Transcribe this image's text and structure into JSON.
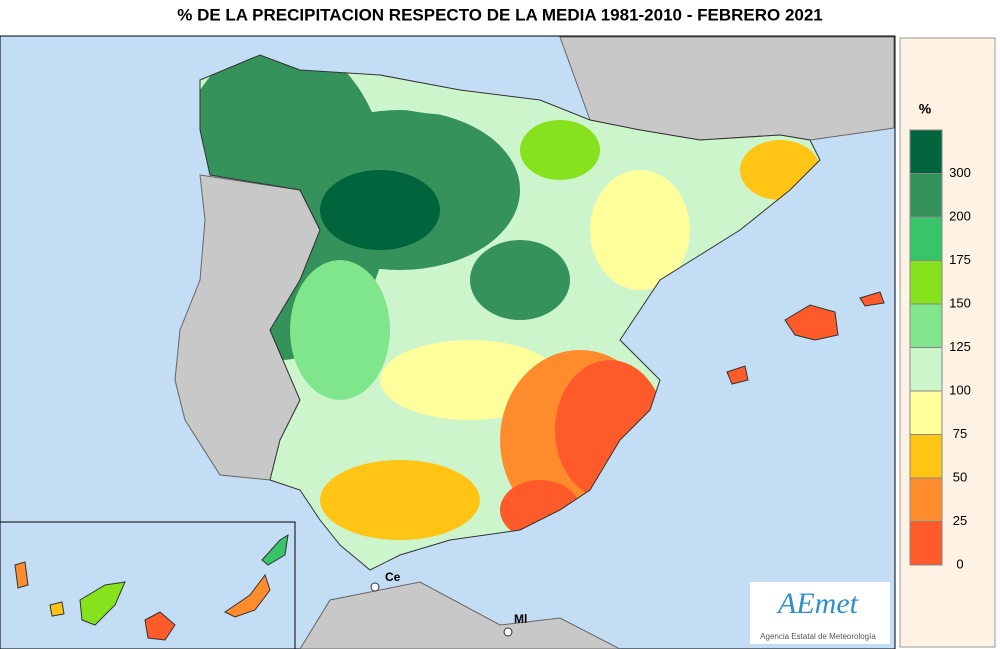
{
  "header": {
    "title": "% DE LA PRECIPITACION RESPECTO DE LA MEDIA 1981-2010 - FEBRERO  2021"
  },
  "legend": {
    "unit": "%",
    "labels": [
      "300",
      "200",
      "175",
      "150",
      "125",
      "100",
      "75",
      "50",
      "25",
      "0"
    ],
    "colors": [
      "#00643c",
      "#34925a",
      "#38c468",
      "#86e21c",
      "#7fe68c",
      "#ccf5cc",
      "#ffff9c",
      "#ffc414",
      "#ff8c2c",
      "#ff5a2a"
    ]
  },
  "places": {
    "ceuta": "Ce",
    "melilla": "Ml"
  },
  "logo": {
    "name": "AEmet",
    "subtitle": "Agencia Estatal de Meteorología"
  }
}
